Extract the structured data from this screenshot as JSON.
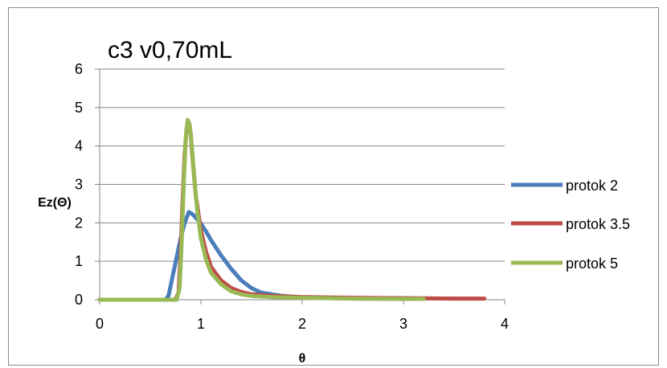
{
  "chart_data": {
    "type": "line",
    "title": "c3 v0,70mL",
    "xlabel": "θ",
    "ylabel": "Ez(Θ)",
    "xlim": [
      0,
      4
    ],
    "ylim": [
      0,
      6
    ],
    "x_ticks": [
      "0",
      "1",
      "2",
      "3",
      "4"
    ],
    "y_ticks": [
      "0",
      "1",
      "2",
      "3",
      "4",
      "5",
      "6"
    ],
    "grid": "horizontal",
    "legend_position": "right",
    "series": [
      {
        "name": "protok 2",
        "color": "#4a7ebb",
        "x": [
          0,
          0.65,
          0.68,
          0.72,
          0.76,
          0.8,
          0.84,
          0.88,
          0.92,
          0.96,
          1.0,
          1.05,
          1.1,
          1.2,
          1.3,
          1.4,
          1.5,
          1.6,
          1.8,
          2.0,
          2.5,
          3.0,
          3.2
        ],
        "y": [
          0,
          0,
          0.1,
          0.6,
          1.1,
          1.6,
          2.0,
          2.28,
          2.22,
          2.1,
          1.98,
          1.78,
          1.55,
          1.15,
          0.8,
          0.5,
          0.3,
          0.18,
          0.1,
          0.06,
          0.03,
          0.02,
          0.02
        ]
      },
      {
        "name": "protok 3.5",
        "color": "#be4b48",
        "x": [
          0,
          0.75,
          0.78,
          0.8,
          0.82,
          0.84,
          0.86,
          0.88,
          0.9,
          0.92,
          0.95,
          1.0,
          1.05,
          1.1,
          1.2,
          1.3,
          1.4,
          1.5,
          1.7,
          2.0,
          2.5,
          3.0,
          3.5,
          3.8
        ],
        "y": [
          0,
          0,
          0.2,
          1.2,
          2.6,
          3.8,
          4.5,
          4.62,
          4.3,
          3.6,
          2.7,
          1.8,
          1.25,
          0.85,
          0.5,
          0.3,
          0.2,
          0.14,
          0.1,
          0.07,
          0.05,
          0.04,
          0.03,
          0.03
        ]
      },
      {
        "name": "protok 5",
        "color": "#98b954",
        "x": [
          0,
          0.76,
          0.79,
          0.81,
          0.83,
          0.85,
          0.87,
          0.89,
          0.91,
          0.93,
          0.96,
          1.0,
          1.05,
          1.1,
          1.2,
          1.3,
          1.4,
          1.5,
          1.7,
          2.0,
          2.5,
          3.0,
          3.2
        ],
        "y": [
          0,
          0,
          0.3,
          1.5,
          3.0,
          4.2,
          4.68,
          4.55,
          4.0,
          3.3,
          2.4,
          1.6,
          1.05,
          0.7,
          0.4,
          0.22,
          0.14,
          0.1,
          0.07,
          0.05,
          0.03,
          0.02,
          0.02
        ]
      }
    ]
  }
}
